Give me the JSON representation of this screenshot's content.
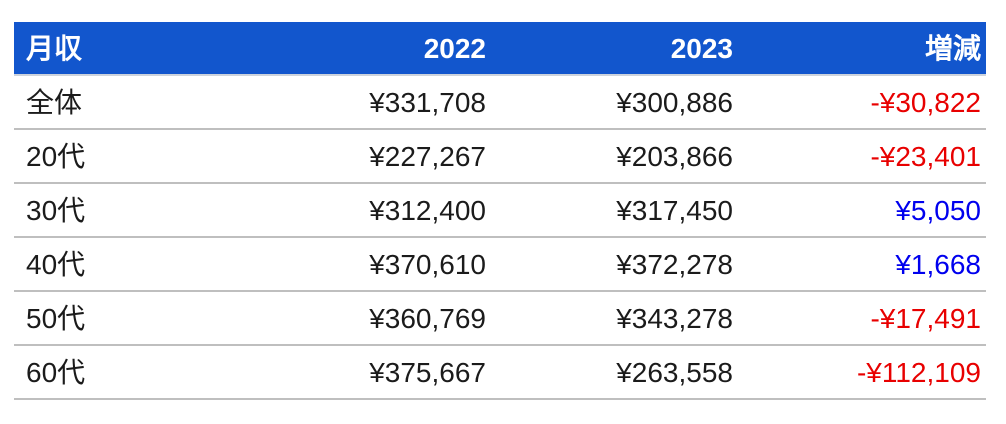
{
  "colors": {
    "background": "#FFFFFF",
    "header_bg": "#1256CD",
    "header_text": "#FFFFFF",
    "header_separator": "#CDD3DC",
    "separator": "#BFBFBF",
    "text": "#1B1B1B",
    "negative": "#E80000",
    "positive": "#0000EE"
  },
  "table": {
    "columns": [
      {
        "label": "月収",
        "align": "left"
      },
      {
        "label": "2022",
        "align": "right"
      },
      {
        "label": "2023",
        "align": "right"
      },
      {
        "label": "増減",
        "align": "right"
      }
    ],
    "rows": [
      {
        "label": "全体",
        "y2022": "¥331,708",
        "y2023": "¥300,886",
        "diff": "-¥30,822",
        "trend": "neg"
      },
      {
        "label": "20代",
        "y2022": "¥227,267",
        "y2023": "¥203,866",
        "diff": "-¥23,401",
        "trend": "neg"
      },
      {
        "label": "30代",
        "y2022": "¥312,400",
        "y2023": "¥317,450",
        "diff": "¥5,050",
        "trend": "pos"
      },
      {
        "label": "40代",
        "y2022": "¥370,610",
        "y2023": "¥372,278",
        "diff": "¥1,668",
        "trend": "pos"
      },
      {
        "label": "50代",
        "y2022": "¥360,769",
        "y2023": "¥343,278",
        "diff": "-¥17,491",
        "trend": "neg"
      },
      {
        "label": "60代",
        "y2022": "¥375,667",
        "y2023": "¥263,558",
        "diff": "-¥112,109",
        "trend": "neg"
      }
    ]
  },
  "chart_data": {
    "type": "table",
    "columns": [
      "月収",
      "2022",
      "2023",
      "増減"
    ],
    "rows": [
      [
        "全体",
        331708,
        300886,
        -30822
      ],
      [
        "20代",
        227267,
        203866,
        -23401
      ],
      [
        "30代",
        312400,
        317450,
        5050
      ],
      [
        "40代",
        370610,
        372278,
        1668
      ],
      [
        "50代",
        360769,
        343278,
        -17491
      ],
      [
        "60代",
        375667,
        263558,
        -112109
      ]
    ],
    "value_unit": "JPY",
    "negative_color": "#E80000",
    "positive_color": "#0000EE",
    "header_background": "#1256CD"
  }
}
